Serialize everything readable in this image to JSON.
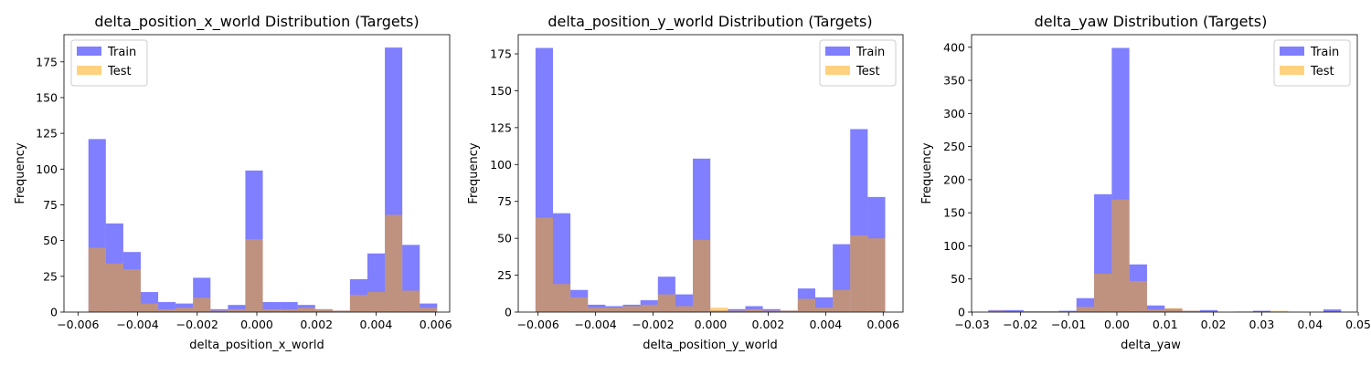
{
  "colors": {
    "train": "#0000ff",
    "test": "#ffa500",
    "bar_alpha": 0.5,
    "test_alpha": 0.5
  },
  "chart_data": [
    {
      "type": "bar",
      "title": "delta_position_x_world Distribution (Targets)",
      "xlabel": "delta_position_x_world",
      "ylabel": "Frequency",
      "xlim": [
        -0.00647,
        0.00647
      ],
      "ylim": [
        0,
        194
      ],
      "xticks": [
        -0.006,
        -0.004,
        -0.002,
        0.0,
        0.002,
        0.004,
        0.006
      ],
      "xtick_labels": [
        "−0.006",
        "−0.004",
        "−0.002",
        "0.000",
        "0.002",
        "0.004",
        "0.006"
      ],
      "yticks": [
        0,
        25,
        50,
        75,
        100,
        125,
        150,
        175
      ],
      "ytick_labels": [
        "0",
        "25",
        "50",
        "75",
        "100",
        "125",
        "150",
        "175"
      ],
      "legend": [
        "Train",
        "Test"
      ],
      "legend_loc": "upper left",
      "bin_edges": [
        -0.00565,
        -0.005065,
        -0.00448,
        -0.003895,
        -0.00331,
        -0.002725,
        -0.00214,
        -0.001555,
        -0.00097,
        -0.000385,
        0.0002,
        0.000785,
        0.00137,
        0.001955,
        0.00254,
        0.003125,
        0.00371,
        0.004295,
        0.00488,
        0.005465,
        0.00605
      ],
      "series": [
        {
          "name": "Train",
          "values": [
            121,
            62,
            42,
            14,
            7,
            6,
            24,
            2,
            5,
            99,
            7,
            7,
            5,
            2,
            1,
            23,
            41,
            185,
            47,
            6
          ]
        },
        {
          "name": "Test",
          "values": [
            45,
            34,
            30,
            6,
            2,
            3,
            10,
            1,
            2,
            51,
            2,
            2,
            3,
            2,
            1,
            12,
            14,
            68,
            15,
            3
          ]
        }
      ]
    },
    {
      "type": "bar",
      "title": "delta_position_y_world Distribution (Targets)",
      "xlabel": "delta_position_y_world",
      "ylabel": "Frequency",
      "xlim": [
        -0.00669,
        0.00669
      ],
      "ylim": [
        0,
        188
      ],
      "xticks": [
        -0.006,
        -0.004,
        -0.002,
        0.0,
        0.002,
        0.004,
        0.006
      ],
      "xtick_labels": [
        "−0.006",
        "−0.004",
        "−0.002",
        "0.000",
        "0.002",
        "0.004",
        "0.006"
      ],
      "yticks": [
        0,
        25,
        50,
        75,
        100,
        125,
        150,
        175
      ],
      "ytick_labels": [
        "0",
        "25",
        "50",
        "75",
        "100",
        "125",
        "150",
        "175"
      ],
      "legend": [
        "Train",
        "Test"
      ],
      "legend_loc": "upper right",
      "bin_edges": [
        -0.00609,
        -0.005482,
        -0.004874,
        -0.004266,
        -0.003658,
        -0.00305,
        -0.002442,
        -0.001834,
        -0.001226,
        -0.000618,
        -1e-05,
        0.000598,
        0.001206,
        0.001814,
        0.002422,
        0.00303,
        0.003638,
        0.004246,
        0.004854,
        0.005462,
        0.00607
      ],
      "series": [
        {
          "name": "Train",
          "values": [
            179,
            67,
            15,
            5,
            4,
            5,
            8,
            24,
            12,
            104,
            1,
            2,
            4,
            2,
            1,
            16,
            10,
            46,
            124,
            78
          ]
        },
        {
          "name": "Test",
          "values": [
            64,
            19,
            10,
            3,
            3,
            4,
            5,
            12,
            4,
            49,
            3,
            1,
            2,
            1,
            1,
            9,
            3,
            15,
            52,
            50
          ]
        }
      ]
    },
    {
      "type": "bar",
      "title": "delta_yaw Distribution (Targets)",
      "xlabel": "delta_yaw",
      "ylabel": "Frequency",
      "xlim": [
        -0.0301,
        0.0498
      ],
      "ylim": [
        0,
        419
      ],
      "xticks": [
        -0.03,
        -0.02,
        -0.01,
        0.0,
        0.01,
        0.02,
        0.03,
        0.04,
        0.05
      ],
      "xtick_labels": [
        "−0.03",
        "−0.02",
        "−0.01",
        "0.00",
        "0.01",
        "0.02",
        "0.03",
        "0.04",
        "0.05"
      ],
      "yticks": [
        0,
        50,
        100,
        150,
        200,
        250,
        300,
        350,
        400
      ],
      "ytick_labels": [
        "0",
        "50",
        "100",
        "150",
        "200",
        "250",
        "300",
        "350",
        "400"
      ],
      "legend": [
        "Train",
        "Test"
      ],
      "legend_loc": "upper right",
      "bin_edges": [
        -0.02665,
        -0.022995,
        -0.01934,
        -0.015685,
        -0.01203,
        -0.008375,
        -0.00472,
        -0.001065,
        0.00259,
        0.006245,
        0.0099,
        0.013555,
        0.01721,
        0.020865,
        0.02452,
        0.028175,
        0.03183,
        0.035485,
        0.03914,
        0.042795,
        0.04645
      ],
      "series": [
        {
          "name": "Train",
          "values": [
            3,
            3,
            1,
            1,
            2,
            21,
            178,
            399,
            72,
            10,
            5,
            2,
            3,
            0,
            0,
            2,
            0,
            0,
            0,
            4
          ]
        },
        {
          "name": "Test",
          "values": [
            2,
            1,
            0,
            0,
            1,
            8,
            58,
            170,
            47,
            4,
            6,
            2,
            1,
            0,
            1,
            0,
            2,
            0,
            0,
            0
          ]
        }
      ]
    }
  ]
}
